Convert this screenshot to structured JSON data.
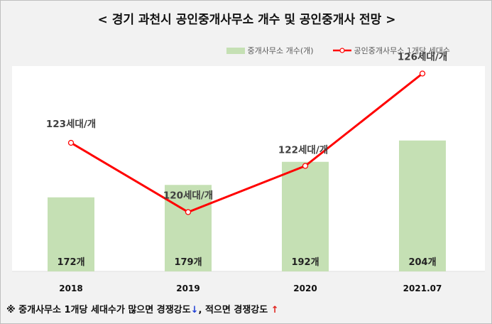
{
  "title": "< 경기 과천시 공인중개사무소 개수 및 공인중개사 전망 >",
  "legend": {
    "bar_label": "중개사무소 개수(개)",
    "line_label": "공인중개사무소 1개당 세대수"
  },
  "colors": {
    "bar": "#c5e0b4",
    "line": "#ff0000",
    "marker_fill": "#ffffff"
  },
  "chart_data": {
    "type": "bar+line",
    "categories": [
      "2018",
      "2019",
      "2020",
      "2021.07"
    ],
    "series": [
      {
        "name": "중개사무소 개수(개)",
        "type": "bar",
        "values": [
          172,
          179,
          192,
          204
        ],
        "data_labels": [
          "172개",
          "179개",
          "192개",
          "204개"
        ]
      },
      {
        "name": "공인중개사무소 1개당 세대수",
        "type": "line",
        "values": [
          123,
          120,
          122,
          126
        ],
        "data_labels": [
          "123세대/개",
          "120세대/개",
          "122세대/개",
          "126세대/개"
        ]
      }
    ],
    "grid": false,
    "legend_position": "top-right"
  },
  "footnote": {
    "text1": "※ 중개사무소 1개당 세대수가 많으면 경쟁강도",
    "arrow1": "↓",
    "text2": ", 적으면 경쟁강도",
    "arrow2": "↑"
  }
}
